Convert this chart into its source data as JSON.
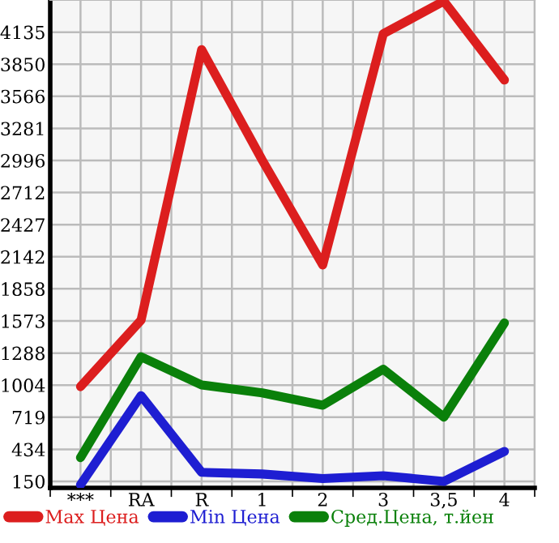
{
  "chart_data": {
    "type": "line",
    "categories": [
      "***",
      "RA",
      "R",
      "1",
      "2",
      "3",
      "3,5",
      "4"
    ],
    "series": [
      {
        "name": "Max Цена",
        "color": "#dc1e1e",
        "values": [
          990,
          1580,
          3980,
          3000,
          2070,
          4120,
          4410,
          3710
        ]
      },
      {
        "name": "Min Цена",
        "color": "#1e1ed2",
        "values": [
          120,
          910,
          230,
          215,
          175,
          200,
          150,
          415
        ]
      },
      {
        "name": "Сред.Цена, т.йен",
        "color": "#0a800a",
        "values": [
          360,
          1255,
          1005,
          935,
          825,
          1145,
          720,
          1555
        ]
      }
    ],
    "ylim": [
      92,
      4420
    ],
    "yticks": [
      150,
      434,
      719,
      1004,
      1288,
      1573,
      1858,
      2142,
      2427,
      2712,
      2996,
      3281,
      3566,
      3850,
      4135
    ],
    "grid": true,
    "legend": "bottom",
    "marker": "none",
    "line_style": "solid"
  }
}
